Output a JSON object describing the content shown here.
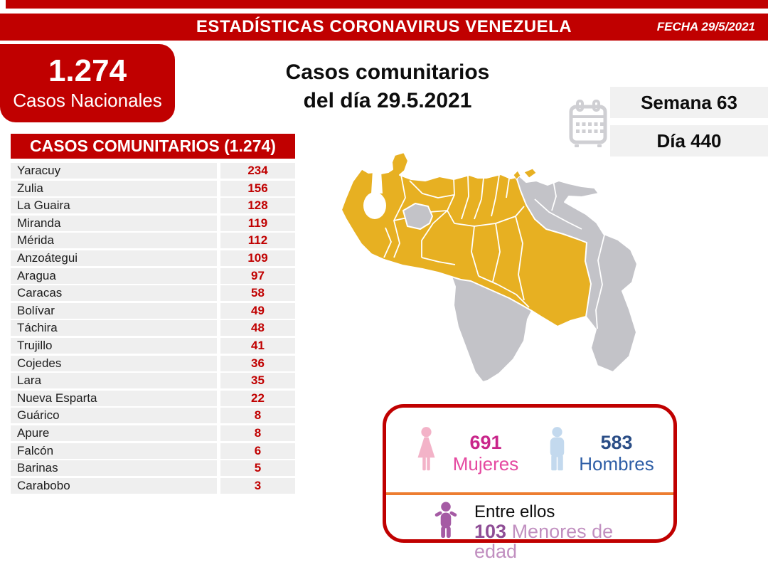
{
  "header": {
    "title": "ESTADÍSTICAS CORONAVIRUS VENEZUELA",
    "date_label": "FECHA 29/5/2021"
  },
  "national_box": {
    "value": "1.274",
    "label": "Casos Nacionales"
  },
  "main_title": {
    "line1": "Casos comunitarios",
    "line2": "del día 29.5.2021"
  },
  "period": {
    "week": "Semana 63",
    "day": "Día 440"
  },
  "table": {
    "header": "CASOS COMUNITARIOS (1.274)",
    "rows": [
      {
        "state": "Yaracuy",
        "value": "234"
      },
      {
        "state": "Zulia",
        "value": "156"
      },
      {
        "state": "La Guaira",
        "value": "128"
      },
      {
        "state": "Miranda",
        "value": "119"
      },
      {
        "state": "Mérida",
        "value": "112"
      },
      {
        "state": "Anzoátegui",
        "value": "109"
      },
      {
        "state": "Aragua",
        "value": "97"
      },
      {
        "state": "Caracas",
        "value": "58"
      },
      {
        "state": "Bolívar",
        "value": "49"
      },
      {
        "state": "Táchira",
        "value": "48"
      },
      {
        "state": "Trujillo",
        "value": "41"
      },
      {
        "state": "Cojedes",
        "value": "36"
      },
      {
        "state": "Lara",
        "value": "35"
      },
      {
        "state": "Nueva Esparta",
        "value": "22"
      },
      {
        "state": "Guárico",
        "value": "8"
      },
      {
        "state": "Apure",
        "value": "8"
      },
      {
        "state": "Falcón",
        "value": "6"
      },
      {
        "state": "Barinas",
        "value": "5"
      },
      {
        "state": "Carabobo",
        "value": "3"
      }
    ]
  },
  "demographics": {
    "women": {
      "count": "691",
      "label": "Mujeres"
    },
    "men": {
      "count": "583",
      "label": "Hombres"
    },
    "minors": {
      "intro": "Entre ellos",
      "count": "103",
      "label": " Menores de edad"
    }
  },
  "colors": {
    "primary_red": "#c00000",
    "orange_divider": "#ed7d31",
    "map_affected": "#e7b022",
    "map_unaffected": "#c3c3c8",
    "map_border": "#ffffff",
    "icon_pink": "#f3b3c8",
    "icon_blue": "#c3d9ee",
    "icon_purple": "#a55ba4",
    "calendar_gray": "#cfcfd3",
    "women_count": "#c9258a",
    "women_label": "#e549a0",
    "men_count": "#2a4d86",
    "men_label": "#2e5ea6",
    "minors_count": "#8f4e96",
    "minors_label": "#c18fc0"
  },
  "chart_data": {
    "type": "table",
    "title": "CASOS COMUNITARIOS (1.274)",
    "categories": [
      "Yaracuy",
      "Zulia",
      "La Guaira",
      "Miranda",
      "Mérida",
      "Anzoátegui",
      "Aragua",
      "Caracas",
      "Bolívar",
      "Táchira",
      "Trujillo",
      "Cojedes",
      "Lara",
      "Nueva Esparta",
      "Guárico",
      "Apure",
      "Falcón",
      "Barinas",
      "Carabobo"
    ],
    "values": [
      234,
      156,
      128,
      119,
      112,
      109,
      97,
      58,
      49,
      48,
      41,
      36,
      35,
      22,
      8,
      8,
      6,
      5,
      3
    ],
    "total_national_cases": 1274,
    "community_cases_total": 1274,
    "women": 691,
    "men": 583,
    "minors": 103,
    "week": 63,
    "day": 440,
    "date": "29/5/2021",
    "legend_note": "map: gold = states with reported community cases, gray = none reported"
  }
}
